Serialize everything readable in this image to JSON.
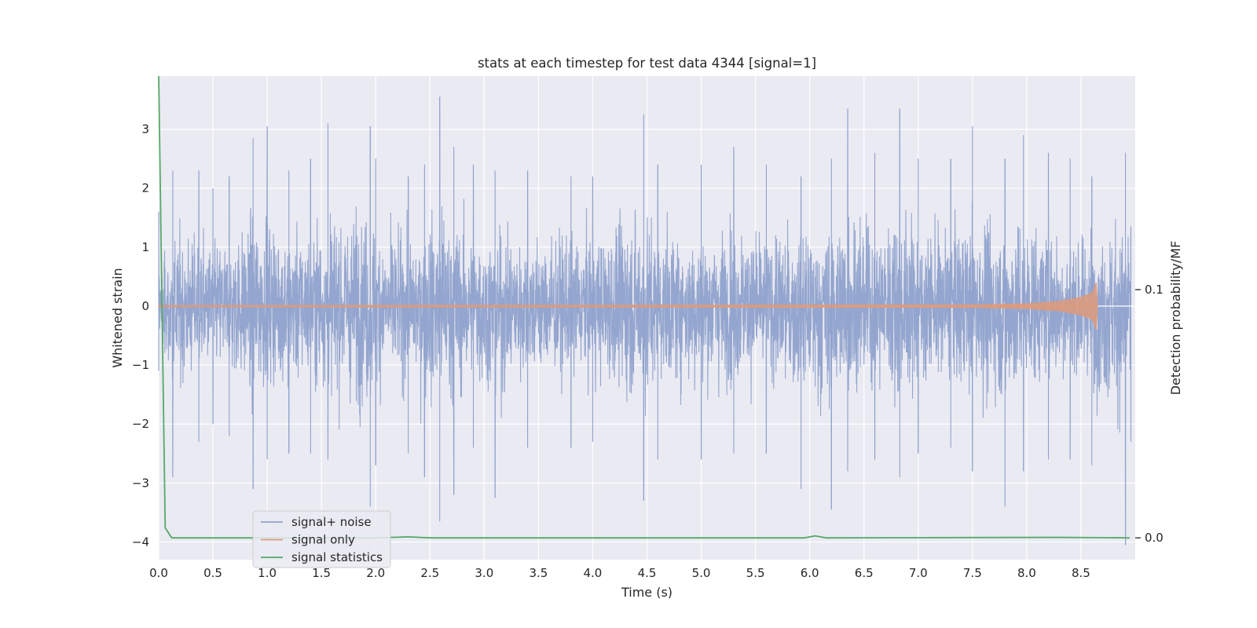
{
  "chart_data": {
    "type": "line",
    "title": "stats at each timestep for test data 4344 [signal=1]",
    "xlabel": "Time (s)",
    "ylabel": "Whitened strain",
    "y2label": "Detection probability/MF",
    "xlim": [
      0.0,
      9.0
    ],
    "ylim": [
      -4.3,
      3.9
    ],
    "y2lim": [
      -0.0088,
      0.186
    ],
    "x_ticks": [
      "0.0",
      "0.5",
      "1.0",
      "1.5",
      "2.0",
      "2.5",
      "3.0",
      "3.5",
      "4.0",
      "4.5",
      "5.0",
      "5.5",
      "6.0",
      "6.5",
      "7.0",
      "7.5",
      "8.0",
      "8.5"
    ],
    "y_ticks": [
      "3",
      "2",
      "1",
      "0",
      "−1",
      "−2",
      "−3",
      "−4"
    ],
    "y2_ticks": [
      "0.1",
      "0.0"
    ],
    "grid": true,
    "legend_position": "lower-left",
    "series": [
      {
        "name": "signal+ noise",
        "color": "#8fa2cc",
        "description_values": {
          "x": [
            0.0,
            0.13,
            0.37,
            0.5,
            0.65,
            0.87,
            1.0,
            1.2,
            1.4,
            1.56,
            1.95,
            2.0,
            2.3,
            2.45,
            2.59,
            2.72,
            2.9,
            3.1,
            3.4,
            3.8,
            4.0,
            4.47,
            4.6,
            5.0,
            5.3,
            5.6,
            5.92,
            6.2,
            6.35,
            6.6,
            6.83,
            7.0,
            7.3,
            7.5,
            7.8,
            7.97,
            8.2,
            8.4,
            8.6,
            8.91,
            8.96
          ],
          "upper": [
            1.6,
            2.3,
            2.3,
            2.0,
            2.2,
            2.85,
            3.05,
            2.3,
            2.5,
            3.1,
            3.05,
            2.5,
            2.2,
            2.4,
            3.55,
            2.7,
            2.4,
            2.3,
            2.3,
            2.2,
            2.2,
            3.25,
            2.4,
            2.4,
            2.7,
            2.4,
            2.2,
            2.5,
            3.35,
            2.6,
            3.35,
            2.5,
            2.5,
            3.05,
            2.5,
            2.9,
            2.6,
            2.5,
            2.2,
            2.6,
            1.35
          ],
          "lower": [
            -1.1,
            -2.9,
            -2.3,
            -2.0,
            -2.2,
            -3.1,
            -2.6,
            -2.5,
            -2.5,
            -2.6,
            -3.4,
            -2.7,
            -2.5,
            -2.9,
            -3.65,
            -3.2,
            -2.4,
            -3.25,
            -2.4,
            -2.4,
            -2.3,
            -3.3,
            -2.6,
            -2.6,
            -2.5,
            -2.5,
            -3.1,
            -3.45,
            -2.8,
            -2.6,
            -2.9,
            -2.5,
            -2.4,
            -2.8,
            -3.4,
            -2.8,
            -2.6,
            -2.6,
            -2.7,
            -4.05,
            -2.3
          ]
        }
      },
      {
        "name": "signal only",
        "color": "#dd9a7b",
        "x": [
          0.0,
          7.5,
          8.0,
          8.3,
          8.5,
          8.6,
          8.62,
          8.63,
          8.64,
          8.65
        ],
        "envelope": [
          0.01,
          0.02,
          0.04,
          0.08,
          0.15,
          0.22,
          0.28,
          0.35,
          0.4,
          0.1
        ]
      },
      {
        "name": "signal statistics",
        "color": "#55a868",
        "x": [
          0.0,
          0.06,
          0.12,
          2.0,
          2.3,
          2.5,
          5.95,
          6.05,
          6.15,
          8.3,
          8.95
        ],
        "y2": [
          0.186,
          0.004,
          0.0,
          0.0,
          0.0004,
          0.0,
          0.0,
          0.0008,
          0.0,
          0.0002,
          0.0
        ]
      }
    ]
  },
  "colors": {
    "plot_bg": "#eaeaf2",
    "grid": "#ffffff",
    "text": "#262626"
  }
}
